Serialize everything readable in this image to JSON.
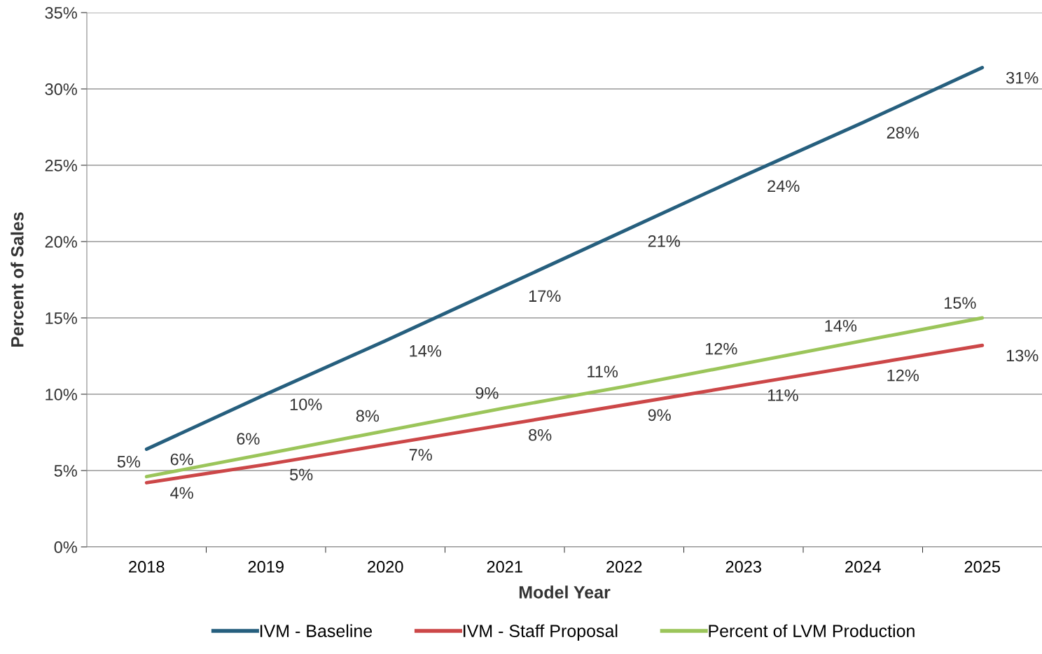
{
  "chart_data": {
    "type": "line",
    "xlabel": "Model Year",
    "ylabel": "Percent of Sales",
    "categories": [
      "2018",
      "2019",
      "2020",
      "2021",
      "2022",
      "2023",
      "2024",
      "2025"
    ],
    "series": [
      {
        "name": "IVM - Baseline",
        "color": "#265f7e",
        "values": [
          6.4,
          10.0,
          13.5,
          17.1,
          20.7,
          24.3,
          27.8,
          31.4
        ],
        "value_labels": [
          "6%",
          "10%",
          "14%",
          "17%",
          "21%",
          "24%",
          "28%",
          "31%"
        ]
      },
      {
        "name": "IVM - Staff Proposal",
        "color": "#cc4748",
        "values": [
          4.2,
          5.4,
          6.7,
          8.0,
          9.3,
          10.6,
          11.9,
          13.2
        ],
        "value_labels": [
          "4%",
          "5%",
          "7%",
          "8%",
          "9%",
          "11%",
          "12%",
          "13%"
        ]
      },
      {
        "name": "Percent of LVM Production",
        "color": "#9bc55a",
        "values": [
          4.6,
          6.1,
          7.6,
          9.1,
          10.5,
          12.0,
          13.5,
          15.0
        ],
        "value_labels": [
          "5%",
          "6%",
          "8%",
          "9%",
          "11%",
          "12%",
          "14%",
          "15%"
        ]
      }
    ],
    "ylim": [
      0,
      35
    ],
    "yticks": [
      {
        "value": 0,
        "label": "0%"
      },
      {
        "value": 5,
        "label": "5%"
      },
      {
        "value": 10,
        "label": "10%"
      },
      {
        "value": 15,
        "label": "15%"
      },
      {
        "value": 20,
        "label": "20%"
      },
      {
        "value": 25,
        "label": "25%"
      },
      {
        "value": 30,
        "label": "30%"
      },
      {
        "value": 35,
        "label": "35%"
      }
    ],
    "grid": "y",
    "legend": "bottom",
    "marker": "none",
    "line_style": "solid"
  }
}
